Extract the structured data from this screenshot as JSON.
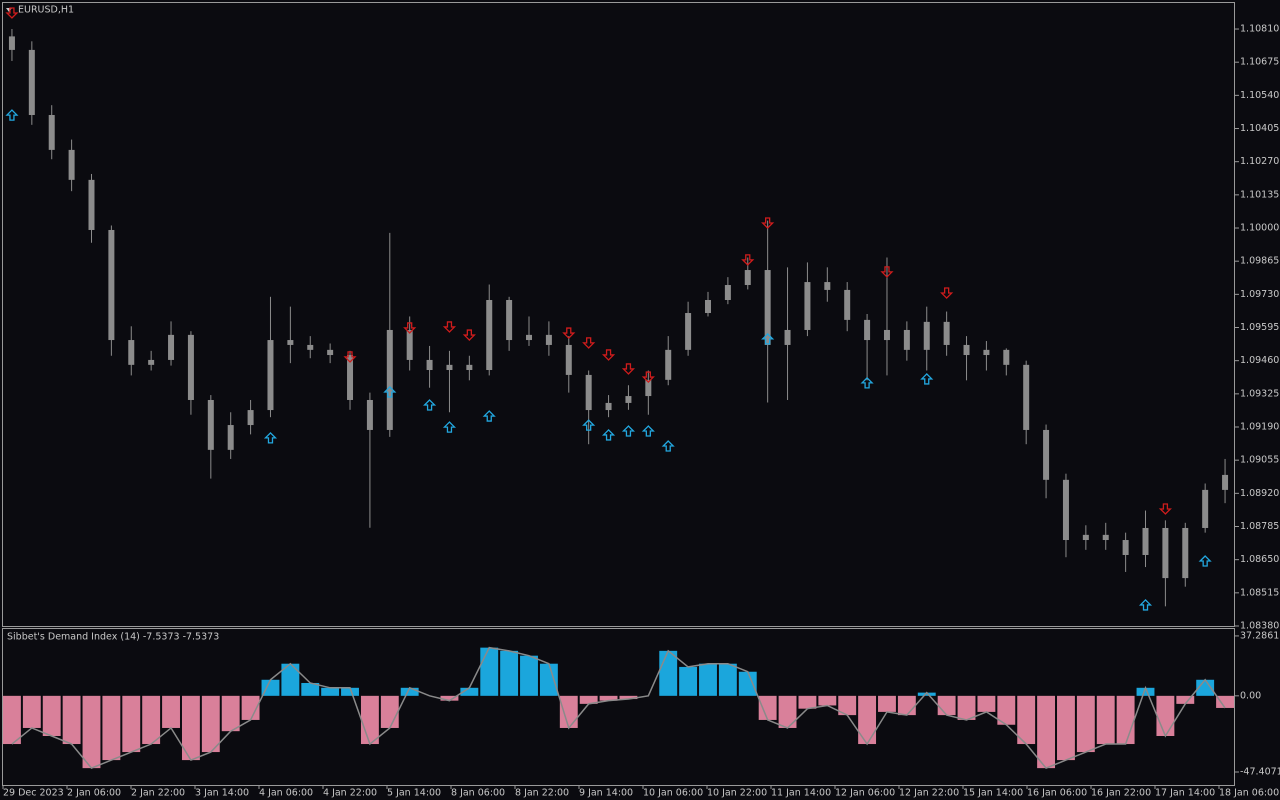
{
  "chart_data": [
    {
      "type": "candlestick",
      "title": "EURUSD,H1",
      "color": "#8c8c8c",
      "candles": [
        [
          1.1078,
          1.1081,
          1.1068,
          1.10725
        ],
        [
          1.10725,
          1.1076,
          1.1042,
          1.1046
        ],
        [
          1.1046,
          1.105,
          1.1028,
          1.10318
        ],
        [
          1.10318,
          1.1036,
          1.1015,
          1.10196
        ],
        [
          1.10196,
          1.1022,
          1.0994,
          1.09992
        ],
        [
          1.09992,
          1.1001,
          1.0948,
          1.09544
        ],
        [
          1.09544,
          1.096,
          1.094,
          1.09443
        ],
        [
          1.09443,
          1.095,
          1.0942,
          1.09463
        ],
        [
          1.09463,
          1.0962,
          1.0944,
          1.09565
        ],
        [
          1.09565,
          1.0958,
          1.0924,
          1.093
        ],
        [
          1.093,
          1.0932,
          1.0898,
          1.09097
        ],
        [
          1.09097,
          1.0925,
          1.0906,
          1.09198
        ],
        [
          1.09198,
          1.093,
          1.0916,
          1.09259
        ],
        [
          1.09259,
          1.0972,
          1.0923,
          1.09544
        ],
        [
          1.09544,
          1.0968,
          1.0945,
          1.09524
        ],
        [
          1.09524,
          1.0956,
          1.0947,
          1.09504
        ],
        [
          1.09504,
          1.0953,
          1.0945,
          1.09483
        ],
        [
          1.09483,
          1.095,
          1.0926,
          1.093
        ],
        [
          1.093,
          1.0933,
          1.0878,
          1.09178
        ],
        [
          1.09178,
          1.0998,
          1.0915,
          1.09585
        ],
        [
          1.09585,
          1.0964,
          1.0942,
          1.09463
        ],
        [
          1.09463,
          1.0952,
          1.0935,
          1.09422
        ],
        [
          1.09422,
          1.095,
          1.0925,
          1.09443
        ],
        [
          1.09443,
          1.0948,
          1.0938,
          1.09422
        ],
        [
          1.09422,
          1.0977,
          1.094,
          1.09707
        ],
        [
          1.09707,
          1.0972,
          1.095,
          1.09544
        ],
        [
          1.09544,
          1.0964,
          1.0952,
          1.09565
        ],
        [
          1.09565,
          1.0962,
          1.0948,
          1.09524
        ],
        [
          1.09524,
          1.0956,
          1.0933,
          1.09402
        ],
        [
          1.09402,
          1.0942,
          1.0912,
          1.09259
        ],
        [
          1.09259,
          1.0932,
          1.0923,
          1.09288
        ],
        [
          1.09288,
          1.0936,
          1.0926,
          1.09316
        ],
        [
          1.09316,
          1.0942,
          1.0924,
          1.09382
        ],
        [
          1.09382,
          1.0956,
          1.0936,
          1.09504
        ],
        [
          1.09504,
          1.097,
          1.0948,
          1.09654
        ],
        [
          1.09654,
          1.0974,
          1.0964,
          1.09707
        ],
        [
          1.09707,
          1.098,
          1.0969,
          1.09768
        ],
        [
          1.09768,
          1.0988,
          1.0975,
          1.09829
        ],
        [
          1.09829,
          1.1003,
          1.0929,
          1.09524
        ],
        [
          1.09524,
          1.0984,
          1.093,
          1.09585
        ],
        [
          1.09585,
          1.0986,
          1.0956,
          1.0978
        ],
        [
          1.0978,
          1.0984,
          1.097,
          1.09748
        ],
        [
          1.09748,
          1.0978,
          1.0958,
          1.09626
        ],
        [
          1.09626,
          1.0965,
          1.0938,
          1.09544
        ],
        [
          1.09544,
          1.0988,
          1.094,
          1.09585
        ],
        [
          1.09585,
          1.0962,
          1.0946,
          1.09504
        ],
        [
          1.09504,
          1.0968,
          1.0942,
          1.09618
        ],
        [
          1.09618,
          1.0966,
          1.0948,
          1.09524
        ],
        [
          1.09524,
          1.0956,
          1.0938,
          1.09483
        ],
        [
          1.09483,
          1.0954,
          1.0942,
          1.09504
        ],
        [
          1.09504,
          1.0951,
          1.094,
          1.09443
        ],
        [
          1.09443,
          1.0946,
          1.0912,
          1.09178
        ],
        [
          1.09178,
          1.092,
          1.089,
          1.08975
        ],
        [
          1.08975,
          1.09,
          1.0866,
          1.0873
        ],
        [
          1.0873,
          1.0879,
          1.0869,
          1.08751
        ],
        [
          1.08751,
          1.088,
          1.0869,
          1.0873
        ],
        [
          1.0873,
          1.0876,
          1.086,
          1.08669
        ],
        [
          1.08669,
          1.0885,
          1.0862,
          1.08779
        ],
        [
          1.08779,
          1.0881,
          1.0846,
          1.08575
        ],
        [
          1.08575,
          1.088,
          1.0854,
          1.08779
        ],
        [
          1.08779,
          1.0896,
          1.0876,
          1.08934
        ],
        [
          1.08934,
          1.0906,
          1.0888,
          1.08995
        ]
      ],
      "signals_down": {
        "color": "#d01c1c",
        "bars": [
          0,
          17,
          20,
          22,
          23,
          28,
          29,
          30,
          31,
          32,
          37,
          38,
          44,
          47,
          58
        ],
        "prices": [
          1.10855,
          1.09455,
          1.09573,
          1.09577,
          1.09544,
          1.09552,
          1.09512,
          1.09463,
          1.09406,
          1.09373,
          1.0985,
          1.1,
          1.09801,
          1.09715,
          1.08836
        ]
      },
      "signals_up": {
        "color": "#23a8e0",
        "bars": [
          0,
          13,
          19,
          21,
          22,
          24,
          29,
          30,
          31,
          32,
          33,
          38,
          43,
          46,
          57,
          60
        ],
        "prices": [
          1.1048,
          1.09166,
          1.09353,
          1.093,
          1.0921,
          1.09255,
          1.09218,
          1.09178,
          1.09194,
          1.09194,
          1.09133,
          1.09569,
          1.0939,
          1.09406,
          1.08486,
          1.08665
        ]
      },
      "ylim": [
        1.0838,
        1.1092
      ],
      "yticks": [
        {
          "value": 1.1081,
          "label": "1.10810"
        },
        1.10675,
        {
          "value": 1.1054,
          "label": "1.10540"
        },
        1.10405,
        {
          "value": 1.1027,
          "label": "1.10270"
        },
        1.10135,
        {
          "value": 1.1,
          "label": "1.10000"
        },
        1.09865,
        {
          "value": 1.0973,
          "label": "1.09730"
        },
        1.09595,
        {
          "value": 1.0946,
          "label": "1.09460"
        },
        1.09325,
        {
          "value": 1.0919,
          "label": "1.09190"
        },
        1.09055,
        {
          "value": 1.0892,
          "label": "1.08920"
        },
        1.08785,
        {
          "value": 1.0865,
          "label": "1.08650"
        },
        1.08515,
        {
          "value": 1.0838,
          "label": "1.08380"
        }
      ]
    },
    {
      "type": "histogram",
      "title": "Sibbet's Demand Index (14) -7.5373 -7.5373",
      "positive_color": "#1ba6dc",
      "negative_color": "#d9809a",
      "line_color": "#8a8a8a",
      "values": [
        -30,
        -20,
        -25,
        -30,
        -45,
        -40,
        -35,
        -30,
        -20,
        -40,
        -35,
        -22,
        -15,
        10,
        20,
        8,
        5,
        5,
        -30,
        -20,
        5,
        0,
        -3,
        5,
        30,
        28,
        25,
        20,
        -20,
        -5,
        -3,
        -2,
        0,
        28,
        18,
        20,
        20,
        15,
        -15,
        -20,
        -8,
        -6,
        -12,
        -30,
        -10,
        -12,
        2,
        -12,
        -15,
        -10,
        -18,
        -30,
        -45,
        -40,
        -35,
        -30,
        -30,
        5,
        -25,
        -5,
        10,
        -7.5373
      ],
      "ylim": [
        -55.5,
        41.6
      ],
      "yticks": [
        37.2861,
        {
          "value": 0,
          "label": "0.00"
        },
        -47.4071
      ],
      "x_labels": [
        "29 Dec 2023",
        "2 Jan 06:00",
        "2 Jan 22:00",
        "3 Jan 14:00",
        "4 Jan 06:00",
        "4 Jan 22:00",
        "5 Jan 14:00",
        "8 Jan 06:00",
        "8 Jan 22:00",
        "9 Jan 14:00",
        "10 Jan 06:00",
        "10 Jan 22:00",
        "11 Jan 14:00",
        "12 Jan 06:00",
        "12 Jan 22:00",
        "15 Jan 14:00",
        "16 Jan 06:00",
        "16 Jan 22:00",
        "17 Jan 14:00",
        "18 Jan 06:00"
      ]
    }
  ]
}
